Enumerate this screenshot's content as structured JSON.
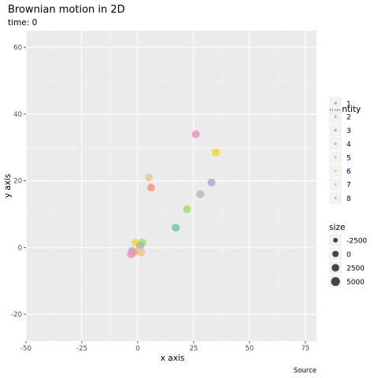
{
  "chart_data": {
    "type": "scatter",
    "title": "Brownian motion in 2D",
    "subtitle": "time: 0",
    "xlabel": "x axis",
    "ylabel": "y axis",
    "caption": "Source",
    "xlim": [
      -50,
      80
    ],
    "ylim": [
      -28,
      65
    ],
    "x_ticks": [
      -50,
      -25,
      0,
      25,
      50,
      75
    ],
    "x_tick_labels": [
      "-50",
      "-25",
      "0",
      "25",
      "50",
      "75"
    ],
    "y_ticks": [
      -20,
      0,
      20,
      40,
      60
    ],
    "y_tick_labels": [
      "-20",
      "0",
      "20",
      "40",
      "60"
    ],
    "grid": true,
    "legend_placement": "right",
    "identity_legend": {
      "title": "Identity",
      "items": [
        {
          "label": "1",
          "color": "#7fc9a9"
        },
        {
          "label": "2",
          "color": "#f49e80"
        },
        {
          "label": "3",
          "color": "#a6b3d8"
        },
        {
          "label": "4",
          "color": "#e89ac4"
        },
        {
          "label": "5",
          "color": "#b3d97a"
        },
        {
          "label": "6",
          "color": "#f7d843"
        },
        {
          "label": "7",
          "color": "#e8c99a"
        },
        {
          "label": "8",
          "color": "#bcbcbc"
        }
      ]
    },
    "size_legend": {
      "title": "size",
      "items": [
        {
          "label": "-2500",
          "value": -2500
        },
        {
          "label": "0",
          "value": 0
        },
        {
          "label": "2500",
          "value": 2500
        },
        {
          "label": "5000",
          "value": 5000
        }
      ]
    },
    "points": [
      {
        "x": 26,
        "y": 34,
        "identity": "4"
      },
      {
        "x": 35,
        "y": 28.5,
        "identity": "6"
      },
      {
        "x": 5,
        "y": 21,
        "identity": "7"
      },
      {
        "x": 6,
        "y": 18,
        "identity": "2"
      },
      {
        "x": 33,
        "y": 19.5,
        "identity": "3"
      },
      {
        "x": 28,
        "y": 16,
        "identity": "8"
      },
      {
        "x": 22,
        "y": 11.5,
        "identity": "5"
      },
      {
        "x": 17,
        "y": 6,
        "identity": "1"
      },
      {
        "x": -1,
        "y": 1.5,
        "identity": "6"
      },
      {
        "x": 2,
        "y": 1.5,
        "identity": "5"
      },
      {
        "x": 1,
        "y": 0.5,
        "identity": "1"
      },
      {
        "x": -2.5,
        "y": -1,
        "identity": "3"
      },
      {
        "x": 1,
        "y": 0,
        "identity": "8"
      },
      {
        "x": 0,
        "y": -1,
        "identity": "7"
      },
      {
        "x": -2,
        "y": -1.5,
        "identity": "2"
      },
      {
        "x": -3,
        "y": -2,
        "identity": "4"
      },
      {
        "x": 1.5,
        "y": -1.5,
        "identity": "7"
      }
    ]
  }
}
